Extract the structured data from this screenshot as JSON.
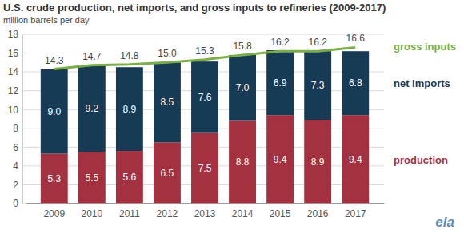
{
  "chart_data": {
    "type": "bar",
    "title": "U.S. crude production, net imports, and gross inputs to refineries (2009-2017)",
    "subtitle": "million barrels per day",
    "categories": [
      "2009",
      "2010",
      "2011",
      "2012",
      "2013",
      "2014",
      "2015",
      "2016",
      "2017"
    ],
    "series": [
      {
        "name": "production",
        "type": "bar",
        "color": "#a3313f",
        "values": [
          5.3,
          5.5,
          5.6,
          6.5,
          7.5,
          8.8,
          9.4,
          8.9,
          9.4
        ],
        "value_labels": [
          "5.3",
          "5.5",
          "5.6",
          "6.5",
          "7.5",
          "8.8",
          "9.4",
          "8.9",
          "9.4"
        ]
      },
      {
        "name": "net imports",
        "type": "bar",
        "color": "#173a55",
        "values": [
          9.0,
          9.2,
          8.9,
          8.5,
          7.6,
          7.0,
          6.9,
          7.3,
          6.8
        ],
        "value_labels": [
          "9.0",
          "9.2",
          "8.9",
          "8.5",
          "7.6",
          "7.0",
          "6.9",
          "7.3",
          "6.8"
        ]
      },
      {
        "name": "gross inputs",
        "type": "line",
        "color": "#79b043",
        "values": [
          14.3,
          14.7,
          14.8,
          15.0,
          15.3,
          15.8,
          16.2,
          16.2,
          16.6
        ],
        "value_labels": [
          "14.3",
          "14.7",
          "14.8",
          "15.0",
          "15.3",
          "15.8",
          "16.2",
          "16.2",
          "16.6"
        ]
      }
    ],
    "stacked": true,
    "data_labels": true,
    "grid": true,
    "legend": "right",
    "ylim": [
      0,
      18
    ],
    "yticks": [
      0,
      2,
      4,
      6,
      8,
      10,
      12,
      14,
      16,
      18
    ],
    "annotations": [
      {
        "text": "eia"
      }
    ]
  }
}
